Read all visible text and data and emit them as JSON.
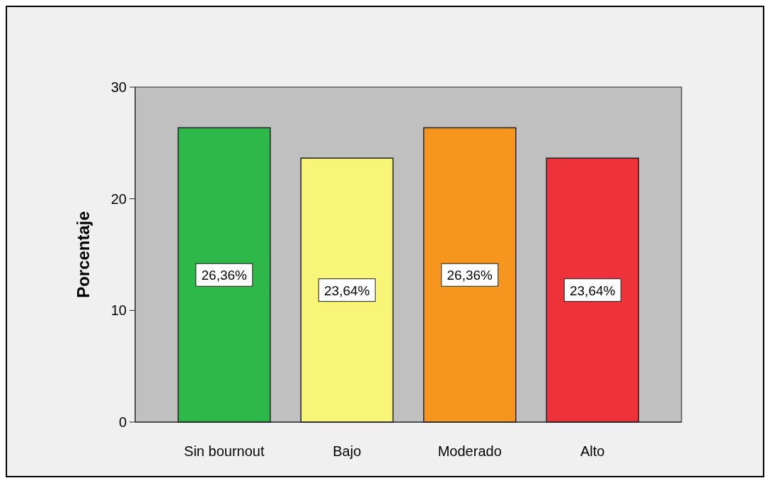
{
  "chart_data": {
    "type": "bar",
    "ylabel": "Porcentaje",
    "categories": [
      "Sin bournout",
      "Bajo",
      "Moderado",
      "Alto"
    ],
    "values": [
      26.36,
      23.64,
      26.36,
      23.64
    ],
    "colors": [
      "#2eb84a",
      "#f8f578",
      "#f7961e",
      "#ee3239"
    ],
    "value_labels": [
      "26,36%",
      "23,64%",
      "26,36%",
      "23,64%"
    ],
    "ylim": [
      0,
      30
    ],
    "yticks": [
      0,
      10,
      20,
      30
    ],
    "grid": false
  }
}
